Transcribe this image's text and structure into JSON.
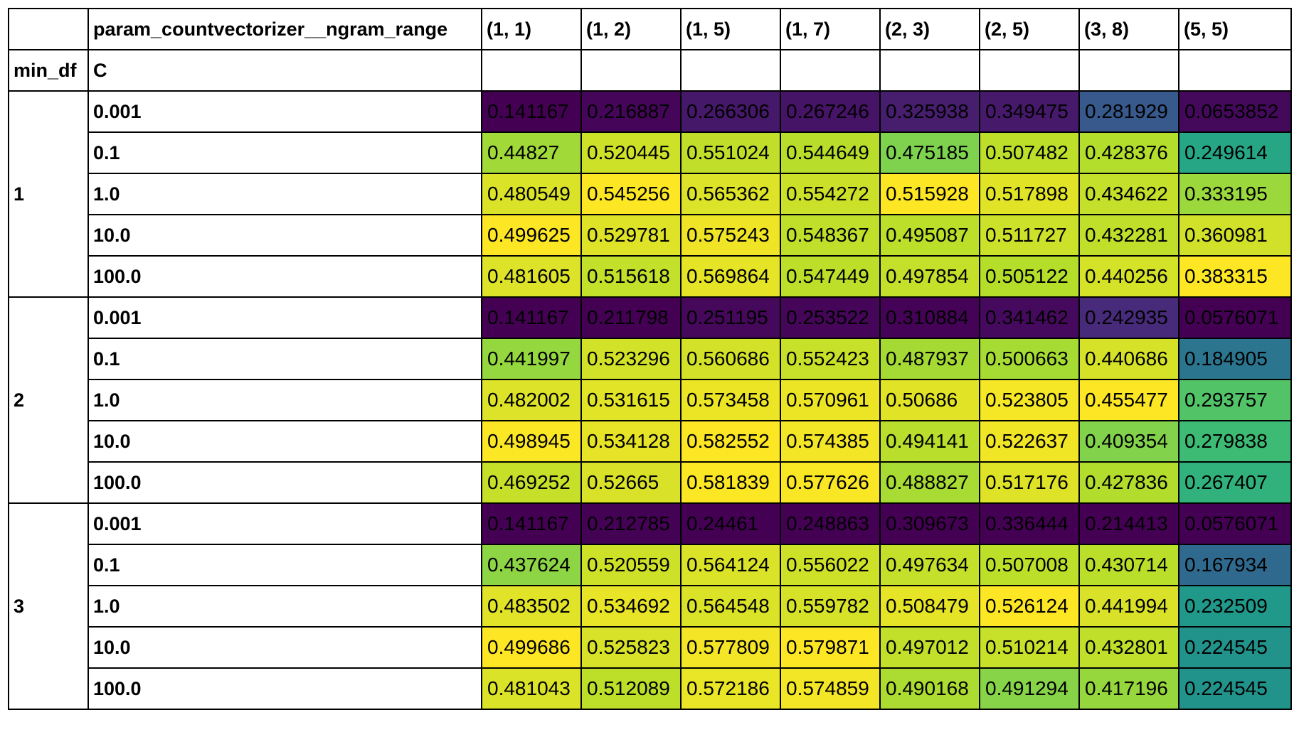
{
  "table": {
    "corner_label": "",
    "column_axis_label": "param_countvectorizer__ngram_range",
    "columns": [
      "(1, 1)",
      "(1, 2)",
      "(1, 5)",
      "(1, 7)",
      "(2, 3)",
      "(2, 5)",
      "(3, 8)",
      "(5, 5)"
    ],
    "index_names": [
      "min_df",
      "C"
    ],
    "groups": [
      {
        "label": "1",
        "rows": [
          {
            "c": "0.001",
            "values": [
              "0.141167",
              "0.216887",
              "0.266306",
              "0.267246",
              "0.325938",
              "0.349475",
              "0.281929",
              "0.0653852"
            ]
          },
          {
            "c": "0.1",
            "values": [
              "0.44827",
              "0.520445",
              "0.551024",
              "0.544649",
              "0.475185",
              "0.507482",
              "0.428376",
              "0.249614"
            ]
          },
          {
            "c": "1.0",
            "values": [
              "0.480549",
              "0.545256",
              "0.565362",
              "0.554272",
              "0.515928",
              "0.517898",
              "0.434622",
              "0.333195"
            ]
          },
          {
            "c": "10.0",
            "values": [
              "0.499625",
              "0.529781",
              "0.575243",
              "0.548367",
              "0.495087",
              "0.511727",
              "0.432281",
              "0.360981"
            ]
          },
          {
            "c": "100.0",
            "values": [
              "0.481605",
              "0.515618",
              "0.569864",
              "0.547449",
              "0.497854",
              "0.505122",
              "0.440256",
              "0.383315"
            ]
          }
        ]
      },
      {
        "label": "2",
        "rows": [
          {
            "c": "0.001",
            "values": [
              "0.141167",
              "0.211798",
              "0.251195",
              "0.253522",
              "0.310884",
              "0.341462",
              "0.242935",
              "0.0576071"
            ]
          },
          {
            "c": "0.1",
            "values": [
              "0.441997",
              "0.523296",
              "0.560686",
              "0.552423",
              "0.487937",
              "0.500663",
              "0.440686",
              "0.184905"
            ]
          },
          {
            "c": "1.0",
            "values": [
              "0.482002",
              "0.531615",
              "0.573458",
              "0.570961",
              "0.50686",
              "0.523805",
              "0.455477",
              "0.293757"
            ]
          },
          {
            "c": "10.0",
            "values": [
              "0.498945",
              "0.534128",
              "0.582552",
              "0.574385",
              "0.494141",
              "0.522637",
              "0.409354",
              "0.279838"
            ]
          },
          {
            "c": "100.0",
            "values": [
              "0.469252",
              "0.52665",
              "0.581839",
              "0.577626",
              "0.488827",
              "0.517176",
              "0.427836",
              "0.267407"
            ]
          }
        ]
      },
      {
        "label": "3",
        "rows": [
          {
            "c": "0.001",
            "values": [
              "0.141167",
              "0.212785",
              "0.24461",
              "0.248863",
              "0.309673",
              "0.336444",
              "0.214413",
              "0.0576071"
            ]
          },
          {
            "c": "0.1",
            "values": [
              "0.437624",
              "0.520559",
              "0.564124",
              "0.556022",
              "0.497634",
              "0.507008",
              "0.430714",
              "0.167934"
            ]
          },
          {
            "c": "1.0",
            "values": [
              "0.483502",
              "0.534692",
              "0.564548",
              "0.559782",
              "0.508479",
              "0.526124",
              "0.441994",
              "0.232509"
            ]
          },
          {
            "c": "10.0",
            "values": [
              "0.499686",
              "0.525823",
              "0.577809",
              "0.579871",
              "0.497012",
              "0.510214",
              "0.432801",
              "0.224545"
            ]
          },
          {
            "c": "100.0",
            "values": [
              "0.481043",
              "0.512089",
              "0.572186",
              "0.574859",
              "0.490168",
              "0.491294",
              "0.417196",
              "0.224545"
            ]
          }
        ]
      }
    ]
  },
  "colormap": {
    "name": "viridis",
    "scale": "per-column",
    "stops": [
      "#440154",
      "#482878",
      "#3e4989",
      "#31688e",
      "#26828e",
      "#1f9e89",
      "#35b779",
      "#6ece58",
      "#b5de2b",
      "#fde725"
    ]
  }
}
